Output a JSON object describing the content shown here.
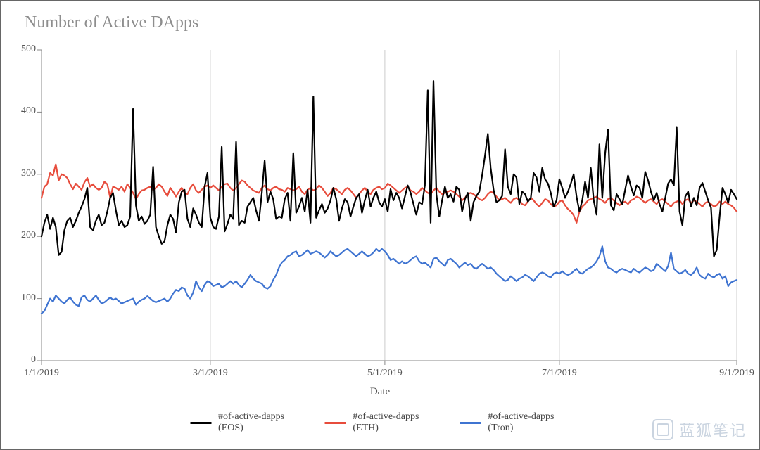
{
  "title": "Number of Active DApps",
  "xlabel": "Date",
  "background_color": "#ffffff",
  "border_color": "#666666",
  "grid_color": "#cccccc",
  "axis_text_color": "#555555",
  "title_color": "#8e8e8e",
  "title_fontsize": 24,
  "label_fontsize": 14,
  "line_width": 2.2,
  "yaxis": {
    "min": 0,
    "max": 500,
    "step": 100,
    "ticks": [
      0,
      100,
      200,
      300,
      400,
      500
    ]
  },
  "xaxis": {
    "min": 0,
    "max": 243,
    "ticks": [
      {
        "pos": 0,
        "label": "1/1/2019"
      },
      {
        "pos": 59,
        "label": "3/1/2019"
      },
      {
        "pos": 120,
        "label": "5/1/2019"
      },
      {
        "pos": 181,
        "label": "7/1/2019"
      },
      {
        "pos": 243,
        "label": "9/1/2019"
      }
    ]
  },
  "legend_labels": {
    "eos": "#of-active-dapps (EOS)",
    "eth": "#of-active-dapps (ETH)",
    "tron": "#of-active-dapps (Tron)"
  },
  "series": {
    "eos": {
      "color": "#000000",
      "values": [
        200,
        222,
        235,
        212,
        230,
        215,
        170,
        175,
        210,
        225,
        230,
        215,
        225,
        238,
        248,
        260,
        278,
        215,
        210,
        225,
        235,
        218,
        222,
        240,
        262,
        270,
        242,
        218,
        225,
        215,
        218,
        232,
        405,
        250,
        225,
        232,
        220,
        225,
        235,
        312,
        215,
        200,
        188,
        192,
        218,
        235,
        228,
        206,
        255,
        272,
        275,
        228,
        215,
        245,
        235,
        222,
        215,
        280,
        302,
        230,
        215,
        212,
        232,
        344,
        208,
        220,
        235,
        228,
        352,
        218,
        225,
        222,
        248,
        255,
        262,
        242,
        225,
        270,
        322,
        255,
        272,
        260,
        228,
        232,
        230,
        260,
        270,
        225,
        334,
        238,
        248,
        262,
        240,
        275,
        222,
        425,
        230,
        242,
        252,
        238,
        245,
        258,
        278,
        260,
        225,
        245,
        260,
        255,
        232,
        248,
        262,
        268,
        238,
        258,
        275,
        248,
        262,
        272,
        255,
        248,
        260,
        240,
        276,
        258,
        270,
        262,
        245,
        264,
        282,
        270,
        252,
        235,
        255,
        252,
        282,
        435,
        222,
        450,
        268,
        232,
        258,
        280,
        262,
        268,
        256,
        280,
        275,
        240,
        260,
        270,
        225,
        255,
        265,
        272,
        298,
        330,
        365,
        310,
        275,
        255,
        258,
        265,
        340,
        280,
        268,
        300,
        295,
        252,
        272,
        268,
        256,
        262,
        302,
        295,
        272,
        310,
        292,
        285,
        270,
        248,
        258,
        292,
        278,
        262,
        272,
        285,
        300,
        264,
        240,
        258,
        288,
        262,
        310,
        258,
        235,
        348,
        262,
        334,
        372,
        250,
        242,
        268,
        260,
        252,
        275,
        298,
        280,
        266,
        282,
        278,
        262,
        304,
        290,
        272,
        258,
        270,
        252,
        240,
        262,
        285,
        292,
        282,
        376,
        240,
        218,
        264,
        272,
        248,
        262,
        250,
        278,
        286,
        272,
        258,
        246,
        168,
        178,
        232,
        278,
        268,
        254,
        275,
        268,
        260
      ]
    },
    "eth": {
      "color": "#e74c3c",
      "values": [
        262,
        280,
        284,
        302,
        298,
        316,
        290,
        300,
        298,
        294,
        284,
        276,
        285,
        280,
        275,
        287,
        294,
        280,
        284,
        278,
        275,
        278,
        288,
        284,
        262,
        280,
        278,
        275,
        280,
        272,
        284,
        278,
        270,
        260,
        268,
        274,
        275,
        278,
        280,
        275,
        278,
        284,
        280,
        272,
        265,
        278,
        272,
        264,
        272,
        278,
        270,
        268,
        278,
        284,
        274,
        270,
        275,
        280,
        282,
        278,
        282,
        278,
        274,
        280,
        284,
        285,
        278,
        274,
        278,
        284,
        290,
        288,
        282,
        278,
        274,
        272,
        270,
        278,
        282,
        276,
        274,
        278,
        280,
        276,
        275,
        272,
        278,
        276,
        274,
        276,
        280,
        272,
        268,
        275,
        278,
        274,
        276,
        282,
        278,
        272,
        265,
        270,
        278,
        276,
        272,
        268,
        275,
        278,
        274,
        268,
        262,
        268,
        274,
        278,
        272,
        268,
        275,
        278,
        280,
        276,
        278,
        285,
        282,
        278,
        274,
        270,
        274,
        278,
        280,
        274,
        272,
        268,
        272,
        278,
        274,
        270,
        268,
        274,
        278,
        272,
        268,
        270,
        272,
        274,
        272,
        268,
        264,
        258,
        262,
        268,
        270,
        268,
        264,
        260,
        258,
        262,
        268,
        272,
        270,
        264,
        258,
        260,
        262,
        258,
        254,
        260,
        262,
        258,
        252,
        250,
        256,
        262,
        258,
        252,
        248,
        254,
        260,
        258,
        252,
        248,
        250,
        256,
        258,
        250,
        244,
        240,
        234,
        222,
        240,
        248,
        252,
        258,
        260,
        262,
        264,
        260,
        258,
        254,
        260,
        262,
        258,
        254,
        250,
        254,
        256,
        252,
        258,
        260,
        264,
        262,
        258,
        254,
        258,
        260,
        256,
        252,
        258,
        260,
        256,
        252,
        248,
        254,
        256,
        258,
        252,
        258,
        260,
        254,
        258,
        256,
        252,
        248,
        254,
        256,
        252,
        248,
        250,
        256,
        252,
        256,
        252,
        250,
        246,
        240
      ]
    },
    "tron": {
      "color": "#3f74d1",
      "values": [
        76,
        80,
        90,
        100,
        95,
        105,
        100,
        95,
        92,
        98,
        102,
        95,
        90,
        88,
        102,
        105,
        98,
        95,
        100,
        105,
        98,
        92,
        94,
        98,
        102,
        98,
        100,
        96,
        92,
        94,
        96,
        98,
        100,
        90,
        95,
        98,
        100,
        104,
        100,
        96,
        94,
        96,
        98,
        100,
        95,
        100,
        108,
        114,
        112,
        118,
        116,
        105,
        100,
        110,
        128,
        118,
        112,
        122,
        128,
        126,
        120,
        122,
        124,
        118,
        120,
        124,
        128,
        124,
        128,
        122,
        118,
        124,
        130,
        138,
        132,
        128,
        126,
        124,
        118,
        116,
        120,
        130,
        138,
        150,
        158,
        162,
        168,
        170,
        174,
        176,
        168,
        170,
        174,
        178,
        172,
        174,
        176,
        174,
        170,
        166,
        170,
        176,
        172,
        168,
        170,
        174,
        178,
        180,
        176,
        172,
        168,
        172,
        176,
        172,
        168,
        170,
        174,
        180,
        176,
        180,
        176,
        170,
        162,
        164,
        160,
        156,
        160,
        156,
        158,
        162,
        166,
        168,
        160,
        156,
        158,
        154,
        150,
        164,
        166,
        160,
        156,
        152,
        162,
        164,
        160,
        156,
        150,
        154,
        158,
        154,
        156,
        150,
        148,
        152,
        156,
        152,
        148,
        150,
        146,
        140,
        136,
        132,
        128,
        130,
        136,
        132,
        128,
        132,
        134,
        138,
        136,
        132,
        128,
        134,
        140,
        142,
        140,
        136,
        134,
        140,
        142,
        140,
        144,
        140,
        138,
        140,
        144,
        148,
        142,
        140,
        144,
        148,
        150,
        154,
        160,
        168,
        184,
        160,
        150,
        148,
        144,
        142,
        146,
        148,
        146,
        144,
        142,
        148,
        144,
        142,
        146,
        150,
        148,
        144,
        146,
        156,
        152,
        148,
        144,
        152,
        174,
        148,
        144,
        140,
        142,
        146,
        140,
        138,
        142,
        150,
        138,
        134,
        132,
        140,
        136,
        134,
        138,
        140,
        132,
        136,
        120,
        126,
        128,
        130
      ]
    }
  },
  "watermark": "蓝狐笔记"
}
